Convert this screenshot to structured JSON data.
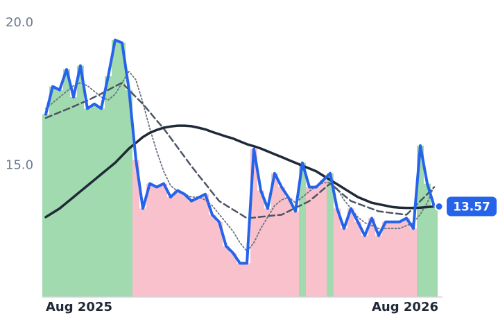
{
  "chart_data": {
    "type": "line",
    "ylim": [
      10.4,
      20.8
    ],
    "yticks": [
      {
        "value": 15,
        "label": "15.0"
      },
      {
        "value": 20,
        "label": "20.0"
      }
    ],
    "xlim": [
      0,
      56
    ],
    "xticks": [
      {
        "value": 0,
        "label": "Aug 2025"
      },
      {
        "value": 56,
        "label": "Aug 2026"
      }
    ],
    "fill_colors": {
      "above": "#8fd3a0",
      "below": "#f7b6c2"
    },
    "series": [
      {
        "color": "#2563eb",
        "style": "solid",
        "values": [
          16.8,
          17.77,
          17.65,
          18.37,
          17.4,
          18.5,
          17.0,
          17.16,
          17.0,
          18.13,
          19.4,
          19.3,
          17.65,
          15.2,
          13.5,
          14.37,
          14.25,
          14.37,
          13.9,
          14.13,
          14.0,
          13.76,
          13.88,
          14.0,
          13.28,
          13.03,
          12.18,
          11.94,
          11.58,
          11.58,
          15.58,
          14.13,
          13.5,
          14.73,
          14.25,
          13.88,
          13.4,
          15.1,
          14.25,
          14.25,
          14.49,
          14.73,
          13.5,
          12.8,
          13.5,
          13.03,
          12.55,
          13.16,
          12.55,
          13.03,
          13.03,
          13.03,
          13.16,
          12.8,
          15.7,
          14.37,
          13.57
        ]
      },
      {
        "color": "#6b7280",
        "style": "dotted",
        "values": [
          17.0,
          17.2,
          17.4,
          17.6,
          17.8,
          17.9,
          17.8,
          17.6,
          17.4,
          17.3,
          17.5,
          17.9,
          18.3,
          18.0,
          17.2,
          16.3,
          15.5,
          14.8,
          14.3,
          14.1,
          14.0,
          13.9,
          13.9,
          13.8,
          13.6,
          13.3,
          13.0,
          12.7,
          12.3,
          12.0,
          12.3,
          12.8,
          13.2,
          13.6,
          13.8,
          13.9,
          13.7,
          13.9,
          14.1,
          14.3,
          14.4,
          14.4,
          14.2,
          13.8,
          13.5,
          13.2,
          13.0,
          12.9,
          12.8,
          12.8,
          12.8,
          12.8,
          12.9,
          13.0,
          13.3,
          13.7,
          14.3
        ]
      },
      {
        "color": "#4b5563",
        "style": "dashed",
        "values": [
          16.67,
          16.77,
          16.87,
          16.97,
          17.07,
          17.18,
          17.28,
          17.4,
          17.52,
          17.65,
          17.78,
          17.9,
          17.65,
          17.4,
          17.16,
          16.87,
          16.58,
          16.3,
          15.97,
          15.64,
          15.31,
          14.98,
          14.67,
          14.37,
          14.06,
          13.76,
          13.61,
          13.46,
          13.31,
          13.16,
          13.18,
          13.21,
          13.23,
          13.26,
          13.28,
          13.4,
          13.52,
          13.64,
          13.76,
          13.96,
          14.17,
          14.37,
          14.17,
          13.96,
          13.76,
          13.67,
          13.58,
          13.49,
          13.4,
          13.37,
          13.34,
          13.31,
          13.28,
          13.52,
          13.76,
          14.0,
          14.25
        ]
      },
      {
        "color": "#1f2937",
        "style": "solid",
        "values": [
          13.2,
          13.35,
          13.5,
          13.7,
          13.9,
          14.1,
          14.3,
          14.5,
          14.7,
          14.9,
          15.1,
          15.35,
          15.6,
          15.8,
          16.0,
          16.15,
          16.25,
          16.33,
          16.37,
          16.4,
          16.4,
          16.38,
          16.33,
          16.27,
          16.18,
          16.1,
          16.02,
          15.95,
          15.85,
          15.75,
          15.68,
          15.6,
          15.5,
          15.4,
          15.3,
          15.2,
          15.1,
          15.0,
          14.9,
          14.8,
          14.65,
          14.5,
          14.35,
          14.2,
          14.05,
          13.9,
          13.8,
          13.7,
          13.65,
          13.6,
          13.55,
          13.53,
          13.52,
          13.52,
          13.53,
          13.55,
          13.57
        ]
      }
    ]
  }
}
